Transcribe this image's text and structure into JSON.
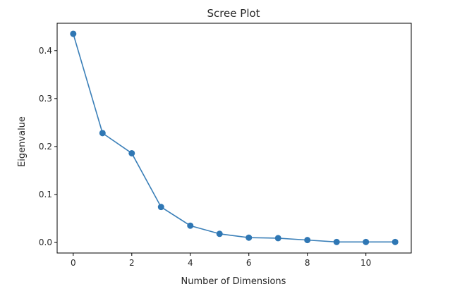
{
  "chart_data": {
    "type": "line",
    "title": "Scree Plot",
    "xlabel": "Number of Dimensions",
    "ylabel": "Eigenvalue",
    "x": [
      0,
      1,
      2,
      3,
      4,
      5,
      6,
      7,
      8,
      9,
      10,
      11
    ],
    "series": [
      {
        "values": [
          0.435,
          0.228,
          0.186,
          0.074,
          0.035,
          0.018,
          0.01,
          0.009,
          0.005,
          0.001,
          0.001,
          0.001
        ]
      }
    ],
    "xlim": [
      -0.55,
      11.55
    ],
    "ylim": [
      -0.022,
      0.457
    ],
    "xticks": [
      0,
      2,
      4,
      6,
      8,
      10
    ],
    "yticks": [
      0.0,
      0.1,
      0.2,
      0.3,
      0.4
    ],
    "ytick_labels": [
      "0.0",
      "0.1",
      "0.2",
      "0.3",
      "0.4"
    ],
    "xtick_labels": [
      "0",
      "2",
      "4",
      "6",
      "8",
      "10"
    ],
    "markers": true,
    "grid": false,
    "line_color": "#3a7fb8",
    "marker_color": "#2f77b4",
    "axis_color": "#000000",
    "text_color": "#262626"
  }
}
